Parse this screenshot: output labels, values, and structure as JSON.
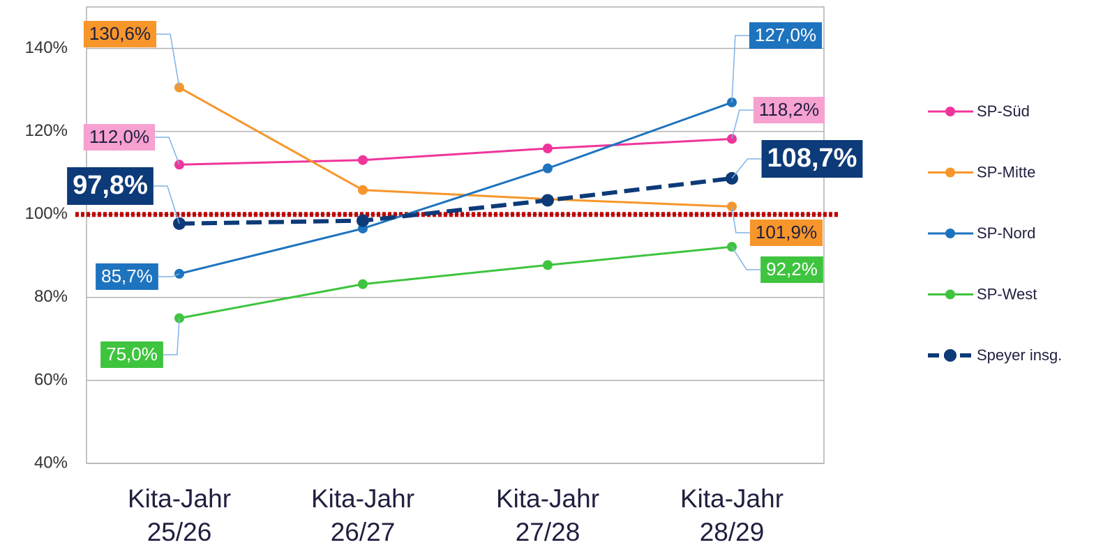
{
  "chart_data": {
    "type": "line",
    "categories": [
      "Kita-Jahr 25/26",
      "Kita-Jahr 26/27",
      "Kita-Jahr 27/28",
      "Kita-Jahr 28/29"
    ],
    "ylim": [
      40,
      150
    ],
    "yticks": [
      {
        "value": 40,
        "label": "40%"
      },
      {
        "value": 60,
        "label": "60%"
      },
      {
        "value": 80,
        "label": "80%"
      },
      {
        "value": 100,
        "label": "100%"
      },
      {
        "value": 120,
        "label": "120%"
      },
      {
        "value": 140,
        "label": "140%"
      }
    ],
    "grid": true,
    "legend": "right",
    "reference_line": {
      "value": 100,
      "color": "#c00000"
    },
    "series": [
      {
        "name": "SP-Süd",
        "color": "#f0359a",
        "label_color": "#f7a1d1",
        "label_text_color": "#1f1f3f",
        "values": [
          112.0,
          113.1,
          115.9,
          118.2
        ],
        "value_labels": [
          "112,0%",
          null,
          null,
          "118,2%"
        ]
      },
      {
        "name": "SP-Mitte",
        "color": "#f7962b",
        "label_color": "#f7962b",
        "label_text_color": "#1f1f3f",
        "values": [
          130.6,
          105.9,
          103.7,
          101.9
        ],
        "value_labels": [
          "130,6%",
          null,
          null,
          "101,9%"
        ]
      },
      {
        "name": "SP-Nord",
        "color": "#1e73be",
        "label_color": "#1e73be",
        "label_text_color": "#ffffff",
        "values": [
          85.7,
          96.6,
          111.1,
          127.0
        ],
        "value_labels": [
          "85,7%",
          null,
          null,
          "127,0%"
        ]
      },
      {
        "name": "SP-West",
        "color": "#3ec43e",
        "label_color": "#3ec43e",
        "label_text_color": "#ffffff",
        "values": [
          75.0,
          83.2,
          87.8,
          92.2
        ],
        "value_labels": [
          "75,0%",
          null,
          null,
          "92,2%"
        ]
      },
      {
        "name": "Speyer insg.",
        "color": "#0d3a78",
        "label_color": "#0d3a78",
        "label_text_color": "#ffffff",
        "line_style": "dashed",
        "values": [
          97.8,
          98.5,
          103.4,
          108.7
        ],
        "value_labels": [
          "97,8%",
          null,
          null,
          "108,7%"
        ]
      }
    ]
  }
}
